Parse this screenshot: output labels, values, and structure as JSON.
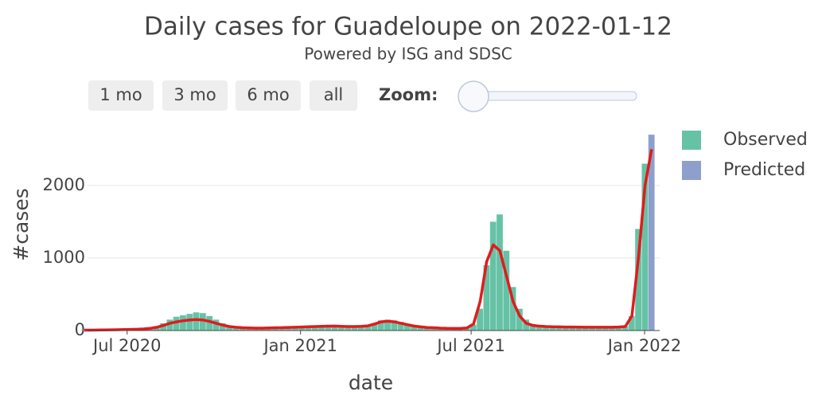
{
  "chart_data": {
    "type": "bar",
    "title": "Daily cases for Guadeloupe on 2022-01-12",
    "subtitle": "Powered by ISG and SDSC",
    "x_label": "date",
    "y_label": "#cases",
    "controls": {
      "buttons": [
        "1 mo",
        "3 mo",
        "6 mo",
        "all"
      ],
      "zoom_label": "Zoom:"
    },
    "x": [
      "2020-05-20",
      "2020-05-27",
      "2020-06-03",
      "2020-06-10",
      "2020-06-17",
      "2020-06-24",
      "2020-07-01",
      "2020-07-08",
      "2020-07-15",
      "2020-07-22",
      "2020-07-29",
      "2020-08-05",
      "2020-08-12",
      "2020-08-19",
      "2020-08-26",
      "2020-09-02",
      "2020-09-09",
      "2020-09-16",
      "2020-09-23",
      "2020-09-30",
      "2020-10-07",
      "2020-10-14",
      "2020-10-21",
      "2020-10-28",
      "2020-11-04",
      "2020-11-11",
      "2020-11-18",
      "2020-11-25",
      "2020-12-02",
      "2020-12-09",
      "2020-12-16",
      "2020-12-23",
      "2020-12-30",
      "2021-01-06",
      "2021-01-13",
      "2021-01-20",
      "2021-01-27",
      "2021-02-03",
      "2021-02-10",
      "2021-02-17",
      "2021-02-24",
      "2021-03-03",
      "2021-03-10",
      "2021-03-17",
      "2021-03-24",
      "2021-03-31",
      "2021-04-07",
      "2021-04-14",
      "2021-04-21",
      "2021-04-28",
      "2021-05-05",
      "2021-05-12",
      "2021-05-19",
      "2021-05-26",
      "2021-06-02",
      "2021-06-09",
      "2021-06-16",
      "2021-06-23",
      "2021-06-30",
      "2021-07-07",
      "2021-07-14",
      "2021-07-21",
      "2021-07-28",
      "2021-08-04",
      "2021-08-11",
      "2021-08-18",
      "2021-08-25",
      "2021-09-01",
      "2021-09-08",
      "2021-09-15",
      "2021-09-22",
      "2021-09-29",
      "2021-10-06",
      "2021-10-13",
      "2021-10-20",
      "2021-10-27",
      "2021-11-03",
      "2021-11-10",
      "2021-11-17",
      "2021-11-24",
      "2021-12-01",
      "2021-12-08",
      "2021-12-15",
      "2021-12-22",
      "2021-12-29",
      "2022-01-05",
      "2022-01-12"
    ],
    "series": [
      {
        "name": "Observed",
        "color": "#66c2a5",
        "values": [
          5,
          5,
          8,
          10,
          10,
          12,
          15,
          18,
          20,
          25,
          40,
          60,
          100,
          150,
          190,
          210,
          230,
          250,
          240,
          200,
          150,
          100,
          70,
          55,
          45,
          40,
          35,
          35,
          40,
          40,
          45,
          50,
          45,
          50,
          55,
          60,
          60,
          65,
          70,
          60,
          55,
          55,
          60,
          70,
          100,
          140,
          150,
          140,
          120,
          90,
          70,
          55,
          45,
          40,
          35,
          30,
          30,
          30,
          35,
          80,
          300,
          900,
          1500,
          1600,
          1100,
          600,
          300,
          150,
          90,
          70,
          60,
          55,
          55,
          50,
          50,
          50,
          45,
          45,
          45,
          45,
          50,
          50,
          60,
          200,
          1400,
          2300,
          null
        ]
      },
      {
        "name": "Predicted",
        "color": "#8da0cb",
        "values": [
          null,
          null,
          null,
          null,
          null,
          null,
          null,
          null,
          null,
          null,
          null,
          null,
          null,
          null,
          null,
          null,
          null,
          null,
          null,
          null,
          null,
          null,
          null,
          null,
          null,
          null,
          null,
          null,
          null,
          null,
          null,
          null,
          null,
          null,
          null,
          null,
          null,
          null,
          null,
          null,
          null,
          null,
          null,
          null,
          null,
          null,
          null,
          null,
          null,
          null,
          null,
          null,
          null,
          null,
          null,
          null,
          null,
          null,
          null,
          null,
          null,
          null,
          null,
          null,
          null,
          null,
          null,
          null,
          null,
          null,
          null,
          null,
          null,
          null,
          null,
          null,
          null,
          null,
          null,
          null,
          null,
          null,
          null,
          null,
          null,
          null,
          2700
        ]
      }
    ],
    "trend": {
      "color": "#e31a1c",
      "values": [
        5,
        5,
        7,
        9,
        10,
        11,
        13,
        15,
        18,
        22,
        30,
        45,
        70,
        100,
        120,
        135,
        145,
        150,
        145,
        125,
        100,
        75,
        55,
        45,
        38,
        35,
        33,
        33,
        35,
        38,
        40,
        43,
        45,
        48,
        52,
        55,
        58,
        60,
        62,
        58,
        55,
        55,
        58,
        65,
        90,
        120,
        128,
        120,
        100,
        80,
        62,
        50,
        42,
        38,
        33,
        30,
        28,
        28,
        35,
        90,
        400,
        950,
        1180,
        1100,
        750,
        400,
        200,
        100,
        70,
        60,
        55,
        52,
        50,
        48,
        48,
        47,
        45,
        45,
        45,
        45,
        45,
        48,
        55,
        200,
        1000,
        2000,
        2500
      ]
    },
    "xlim": [
      "2020-05-20",
      "2022-01-17"
    ],
    "xticks": [
      {
        "value": "2020-07-01",
        "label": "Jul 2020"
      },
      {
        "value": "2021-01-01",
        "label": "Jan 2021"
      },
      {
        "value": "2021-07-01",
        "label": "Jul 2021"
      },
      {
        "value": "2022-01-01",
        "label": "Jan 2022"
      }
    ],
    "ylim": [
      0,
      2800
    ],
    "yticks": [
      0,
      1000,
      2000
    ],
    "grid": true,
    "legend": "right"
  }
}
